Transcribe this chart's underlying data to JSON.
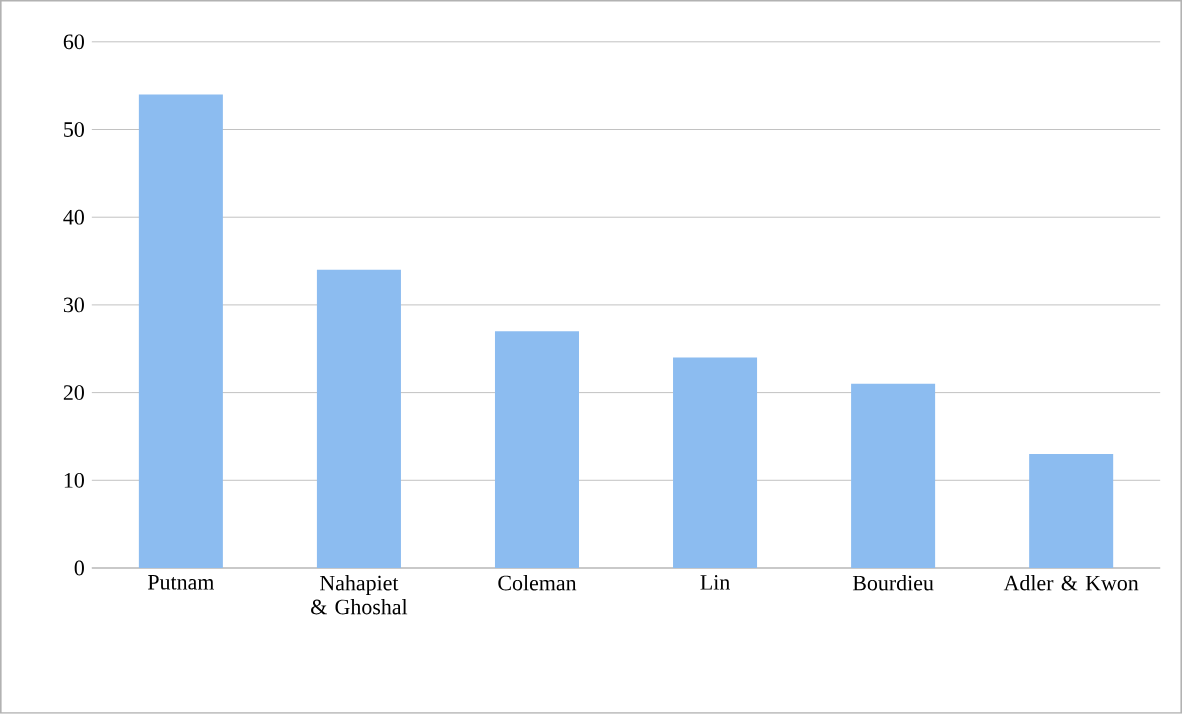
{
  "chart_data": {
    "type": "bar",
    "categories": [
      "Putnam",
      "Nahapiet & Ghoshal",
      "Coleman",
      "Lin",
      "Bourdieu",
      "Adler & Kwon"
    ],
    "values": [
      54,
      34,
      27,
      24,
      21,
      13
    ],
    "color": "#8cbcf0",
    "ylim": [
      0,
      60
    ],
    "yticks": [
      0,
      10,
      20,
      30,
      40,
      50,
      60
    ],
    "grid": "y"
  }
}
